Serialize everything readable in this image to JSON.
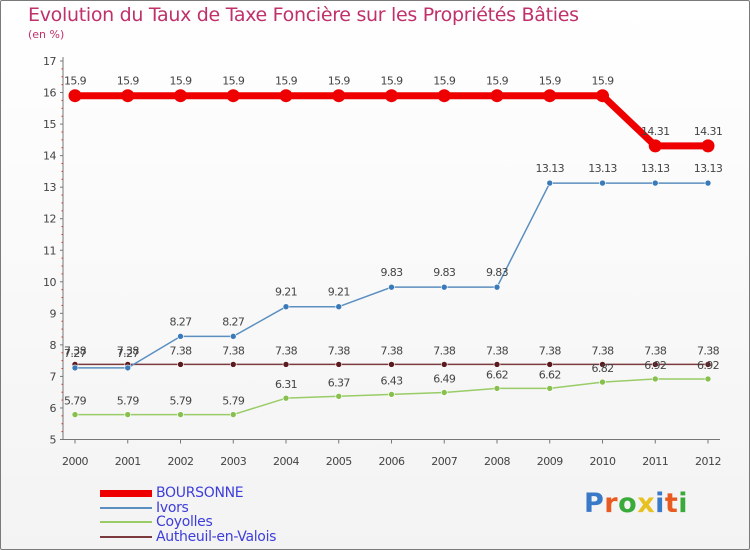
{
  "chart_data": {
    "type": "line",
    "title": "Evolution du Taux de Taxe Foncière sur les Propriétés Bâties",
    "unit_label": "(en %)",
    "categories": [
      "2000",
      "2001",
      "2002",
      "2003",
      "2004",
      "2005",
      "2006",
      "2007",
      "2008",
      "2009",
      "2010",
      "2011",
      "2012"
    ],
    "ylim": [
      5,
      17
    ],
    "yticks": [
      "5",
      "6",
      "7",
      "8",
      "9",
      "10",
      "11",
      "12",
      "13",
      "14",
      "15",
      "16",
      "17"
    ],
    "series": [
      {
        "name": "BOURSONNE",
        "color": "#ee0000",
        "values": [
          15.9,
          15.9,
          15.9,
          15.9,
          15.9,
          15.9,
          15.9,
          15.9,
          15.9,
          15.9,
          15.9,
          14.31,
          14.31
        ],
        "labels": [
          "15.9",
          "15.9",
          "15.9",
          "15.9",
          "15.9",
          "15.9",
          "15.9",
          "15.9",
          "15.9",
          "15.9",
          "15.9",
          "14.31",
          "14.31"
        ]
      },
      {
        "name": "Ivors",
        "color": "#5a8fc0",
        "values": [
          7.27,
          7.27,
          8.27,
          8.27,
          9.21,
          9.21,
          9.83,
          9.83,
          9.83,
          13.13,
          13.13,
          13.13,
          13.13
        ],
        "labels": [
          "7.27",
          "7.27",
          "8.27",
          "8.27",
          "9.21",
          "9.21",
          "9.83",
          "9.83",
          "9.83",
          "13.13",
          "13.13",
          "13.13",
          "13.13"
        ]
      },
      {
        "name": "Coyolles",
        "color": "#99cc66",
        "values": [
          5.79,
          5.79,
          5.79,
          5.79,
          6.31,
          6.37,
          6.43,
          6.49,
          6.62,
          6.62,
          6.82,
          6.92,
          6.92
        ],
        "labels": [
          "5.79",
          "5.79",
          "5.79",
          "5.79",
          "6.31",
          "6.37",
          "6.43",
          "6.49",
          "6.62",
          "6.62",
          "6.82",
          "6.92",
          "6.92"
        ]
      },
      {
        "name": "Autheuil-en-Valois",
        "color": "#7a3a3e",
        "values": [
          7.38,
          7.38,
          7.38,
          7.38,
          7.38,
          7.38,
          7.38,
          7.38,
          7.38,
          7.38,
          7.38,
          7.38,
          7.38
        ],
        "labels": [
          "7.38",
          "7.38",
          "7.38",
          "7.38",
          "7.38",
          "7.38",
          "7.38",
          "7.38",
          "7.38",
          "7.38",
          "7.38",
          "7.38",
          "7.38"
        ]
      }
    ],
    "grid": false,
    "legend_position": "bottom-left"
  },
  "legend": {
    "items": [
      "BOURSONNE",
      "Ivors",
      "Coyolles",
      "Autheuil-en-Valois"
    ]
  },
  "brand": {
    "logo_text": "Proxiti",
    "letter_colors": [
      "#3a78c8",
      "#e85a20",
      "#3aaa3a",
      "#e8c020",
      "#3a78c8",
      "#e85a20",
      "#3aaa3a"
    ]
  }
}
